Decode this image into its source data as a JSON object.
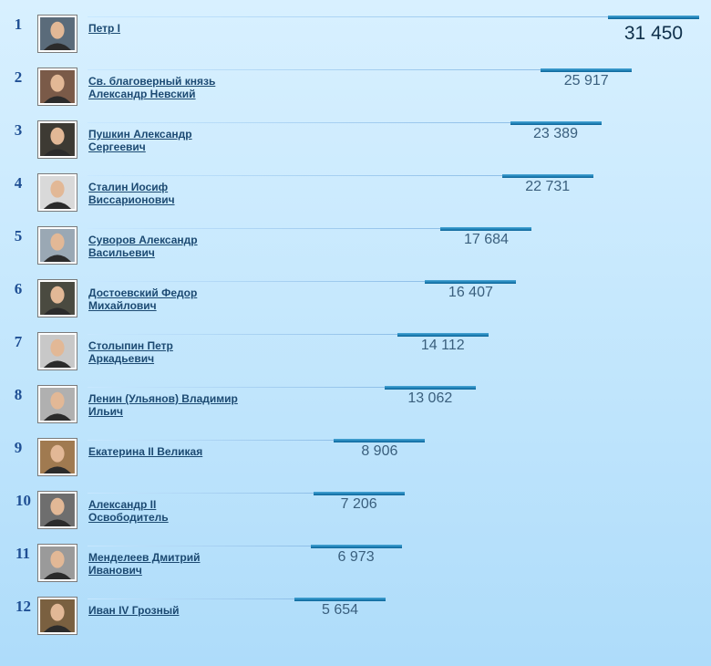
{
  "chart_data": {
    "type": "bar",
    "categories": [
      "Петр I",
      "Св. благоверный князь Александр Невский",
      "Пушкин Александр Сергеевич",
      "Сталин Иосиф Виссарионович",
      "Суворов Александр Васильевич",
      "Достоевский Федор Михайлович",
      "Столыпин Петр Аркадьевич",
      "Ленин (Ульянов) Владимир Ильич",
      "Екатерина II Великая",
      "Александр II Освободитель",
      "Менделеев Дмитрий Иванович",
      "Иван IV Грозный"
    ],
    "values": [
      31450,
      25917,
      23389,
      22731,
      17684,
      16407,
      14112,
      13062,
      8906,
      7206,
      6973,
      5654
    ],
    "value_labels": [
      "31 450",
      "25 917",
      "23 389",
      "22 731",
      "17 684",
      "16 407",
      "14 112",
      "13 062",
      "8 906",
      "7 206",
      "6 973",
      "5 654"
    ],
    "ranks": [
      "1",
      "2",
      "3",
      "4",
      "5",
      "6",
      "7",
      "8",
      "9",
      "10",
      "11",
      "12"
    ],
    "name_lines": [
      [
        "Петр I"
      ],
      [
        "Св. благоверный князь",
        "Александр Невский"
      ],
      [
        "Пушкин Александр",
        "Сергеевич"
      ],
      [
        "Сталин Иосиф",
        "Виссарионович"
      ],
      [
        "Суворов Александр",
        "Васильевич"
      ],
      [
        "Достоевский Федор",
        "Михайлович"
      ],
      [
        "Столыпин Петр",
        "Аркадьевич"
      ],
      [
        "Ленин (Ульянов) Владимир",
        "Ильич"
      ],
      [
        "Екатерина II Великая"
      ],
      [
        "Александр II",
        "Освободитель"
      ],
      [
        "Менделеев Дмитрий",
        "Иванович"
      ],
      [
        "Иван IV Грозный"
      ]
    ],
    "title": "",
    "xlabel": "",
    "ylabel": "",
    "orientation": "horizontal",
    "grid": false,
    "colors": {
      "bar": "#1d7fb4",
      "rank": "#1f4f94",
      "name": "#1c4a72",
      "value": "#3a5f7d"
    }
  }
}
